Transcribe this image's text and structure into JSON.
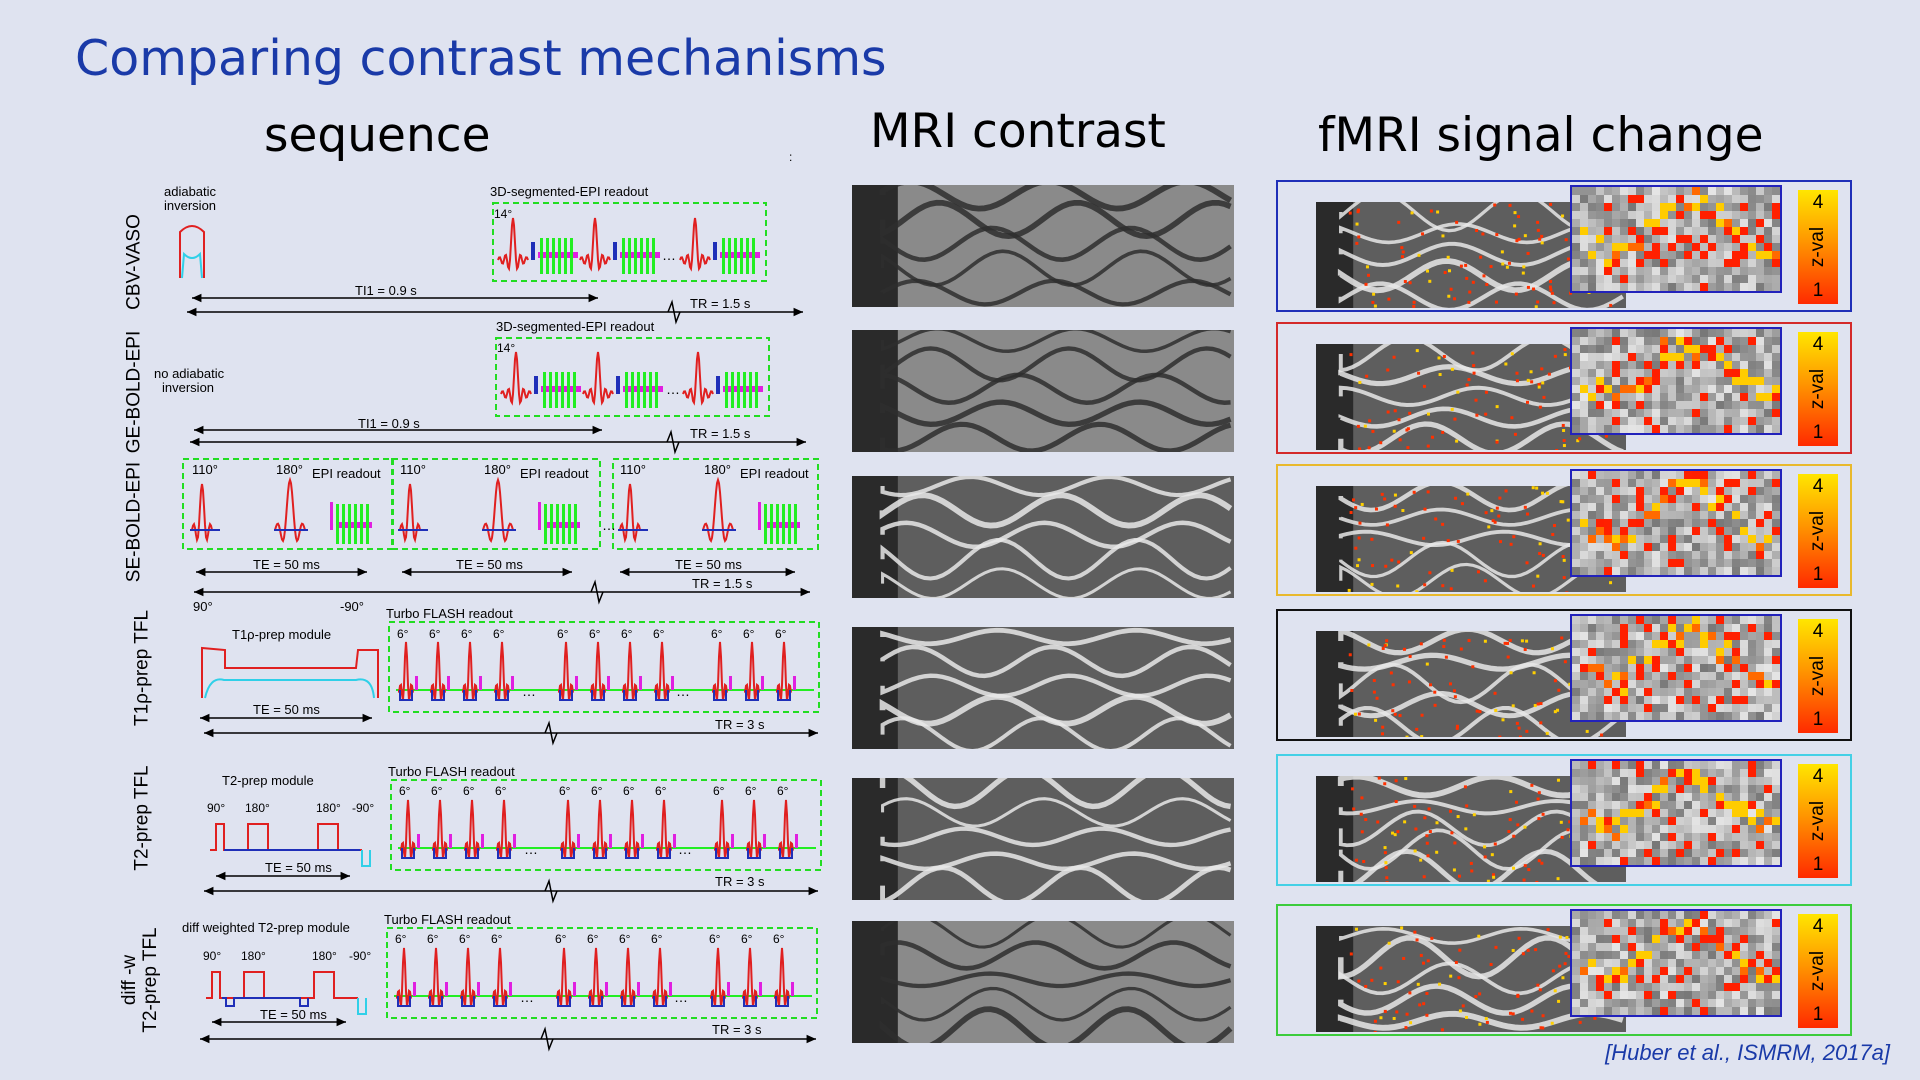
{
  "slide": {
    "title": "Comparing contrast mechanisms",
    "columns": [
      "sequence",
      "MRI contrast",
      "fMRI signal change"
    ],
    "citation": "[Huber et al., ISMRM, 2017a]",
    "dot": ":"
  },
  "rows": [
    {
      "label": "CBV-VASO",
      "frame_color": "#1f2fb8",
      "seq": {
        "top_label": "adiabatic inversion",
        "readout": "3D-segmented-EPI readout",
        "flip": "14°",
        "timing1": "TI1 = 0.9 s",
        "timing2": "TR = 1.5 s"
      }
    },
    {
      "label": "GE-BOLD-EPI",
      "frame_color": "#d42a2a",
      "seq": {
        "top_label": "no adiabatic inversion",
        "readout": "3D-segmented-EPI readout",
        "flip": "14°",
        "timing1": "TI1 = 0.9 s",
        "timing2": "TR = 1.5 s"
      }
    },
    {
      "label": "SE-BOLD-EPI",
      "frame_color": "#e9b92c",
      "seq": {
        "flip_a": "110°",
        "flip_b": "180°",
        "readout": "EPI readout",
        "te": "TE = 50 ms",
        "tr": "TR = 1.5 s",
        "start": "90°",
        "end": "-90°"
      }
    },
    {
      "label": "T1ρ-prep TFL",
      "frame_color": "#111111",
      "seq": {
        "module": "T1ρ-prep module",
        "readout": "Turbo FLASH readout",
        "flip": "6°",
        "te": "TE = 50 ms",
        "tr": "TR = 3 s"
      }
    },
    {
      "label": "T2-prep TFL",
      "frame_color": "#44d0e6",
      "seq": {
        "module": "T2-prep module",
        "readout": "Turbo FLASH readout",
        "flip": "6°",
        "te": "TE = 50 ms",
        "tr": "TR = 3 s",
        "angles": [
          "90°",
          "180°",
          "180°",
          "-90°"
        ]
      }
    },
    {
      "label": "diff -w T2-prep TFL",
      "label_lines": [
        "diff -w",
        "T2-prep TFL"
      ],
      "frame_color": "#3ccc3c",
      "seq": {
        "module": "diff weighted T2-prep module",
        "readout": "Turbo FLASH readout",
        "flip": "6°",
        "te": "TE = 50 ms",
        "tr": "TR = 3 s",
        "angles": [
          "90°",
          "180°",
          "180°",
          "-90°"
        ]
      }
    }
  ],
  "colorbar": {
    "max": "4",
    "label": "z-val",
    "min": "1"
  },
  "colors": {
    "title": "#1a3aa8",
    "rf": "#e02020",
    "gradient_blue": "#1f2fb8",
    "readout": "#22ee22",
    "magenta": "#e020e0",
    "cyan": "#30d0e8",
    "box": "#22dd22"
  }
}
